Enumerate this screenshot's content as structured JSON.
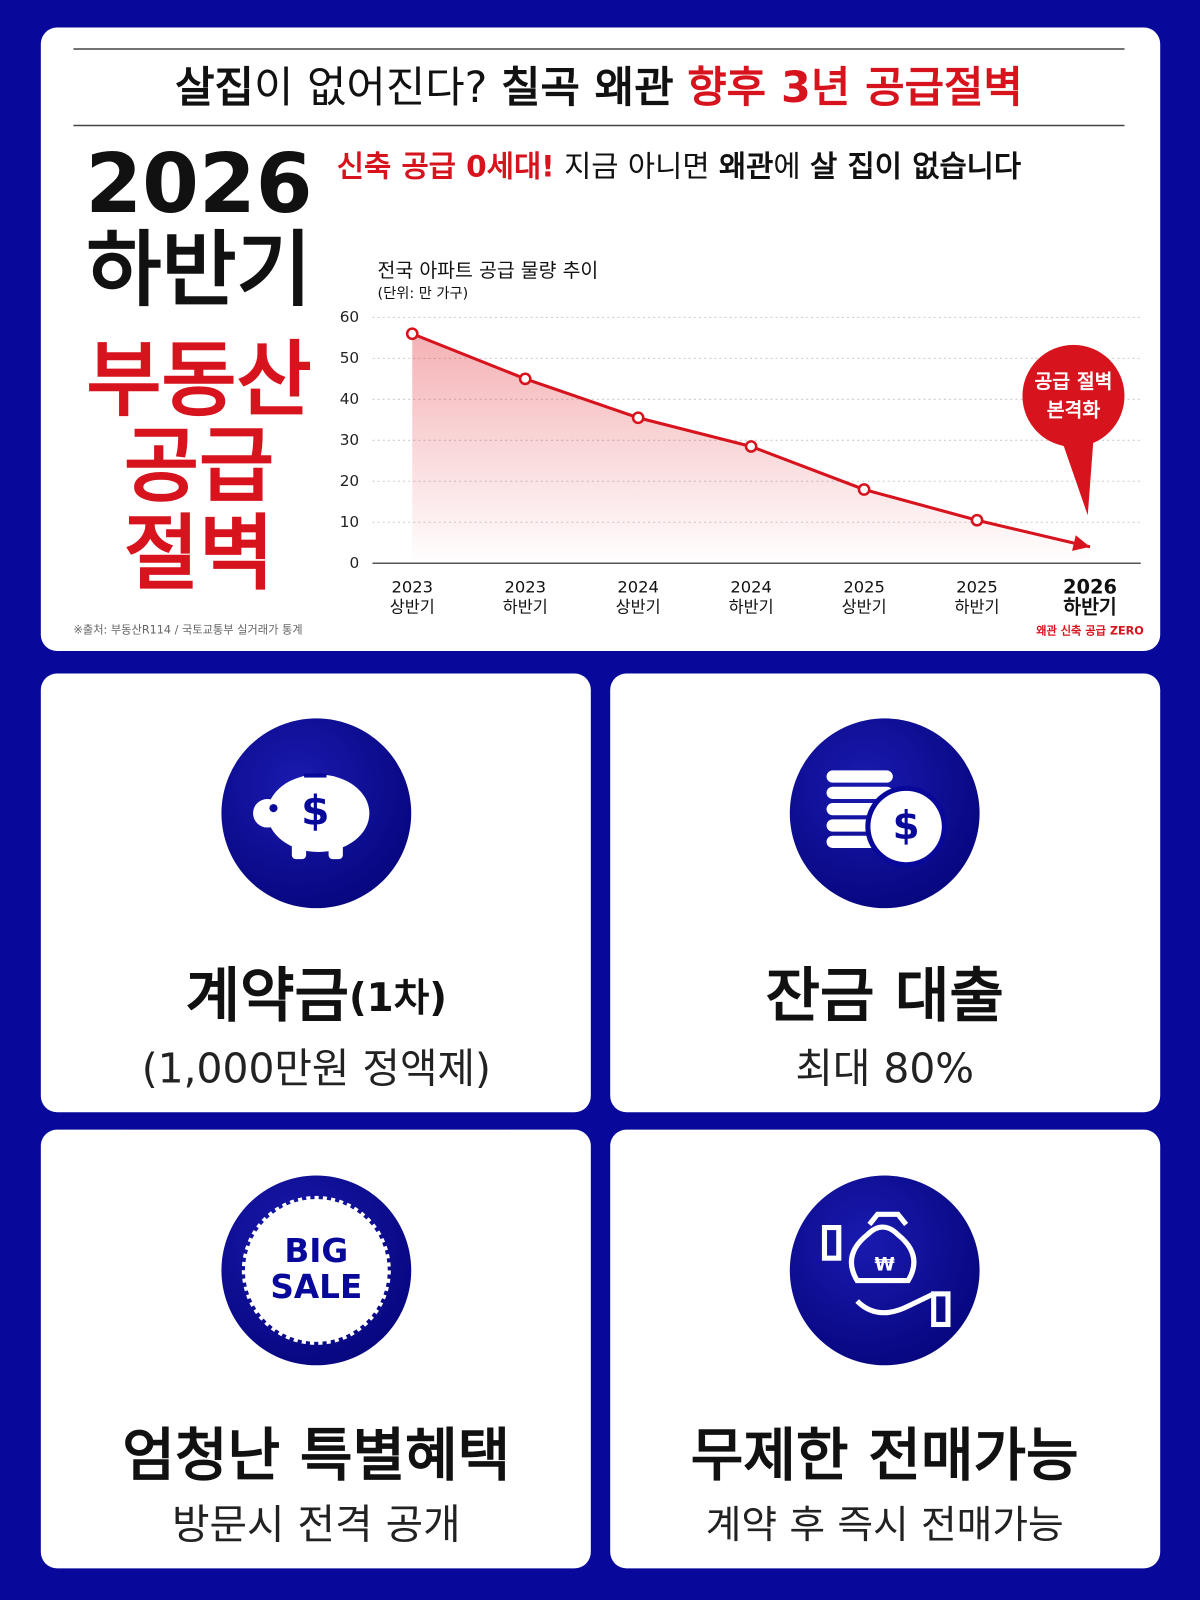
{
  "headline": {
    "part1": "살집",
    "part2": "이 없어진다?",
    "part3": "칠곡 왜관",
    "part4": "향후 3년 공급절벽"
  },
  "subheadline": {
    "part1": "신축 공급 0세대!",
    "part2": "지금 아니면",
    "part3": "왜관",
    "part4": "에",
    "part5": "살 집이 없습니다"
  },
  "big_text": {
    "line1": "2026",
    "line2": "하반기",
    "line3": "부동산",
    "line4": "공급",
    "line5": "절벽"
  },
  "chart_data": {
    "type": "line",
    "title": "전국 아파트 공급 물량 추이",
    "subtitle": "(단위: 만 가구)",
    "categories": [
      [
        "2023",
        "상반기"
      ],
      [
        "2023",
        "하반기"
      ],
      [
        "2024",
        "상반기"
      ],
      [
        "2024",
        "하반기"
      ],
      [
        "2025",
        "상반기"
      ],
      [
        "2025",
        "하반기"
      ],
      [
        "2026",
        "하반기"
      ]
    ],
    "values": [
      56,
      45,
      35.5,
      28.5,
      18,
      10.5,
      4
    ],
    "color": "#d7141e",
    "ylim": [
      0,
      60
    ],
    "yticks": [
      0,
      10,
      20,
      30,
      40,
      50,
      60
    ],
    "grid": true,
    "annotation": [
      "공급 절벽",
      "본격화"
    ],
    "last_category_note": "왜관 신축 공급 ZERO"
  },
  "source": "※출처: 부동산R114 / 국토교통부 실거래가 통계",
  "cards": [
    {
      "title": "계약금",
      "title_suffix": "(1차)",
      "subtitle": "(1,000만원 정액제)"
    },
    {
      "title": "잔금 대출",
      "subtitle": "최대 80%"
    },
    {
      "title": "엄청난 특별혜택",
      "subtitle": "방문시 전격 공개",
      "badge": [
        "BIG",
        "SALE"
      ]
    },
    {
      "title": "무제한 전매가능",
      "subtitle": "계약 후 즉시 전매가능"
    }
  ]
}
